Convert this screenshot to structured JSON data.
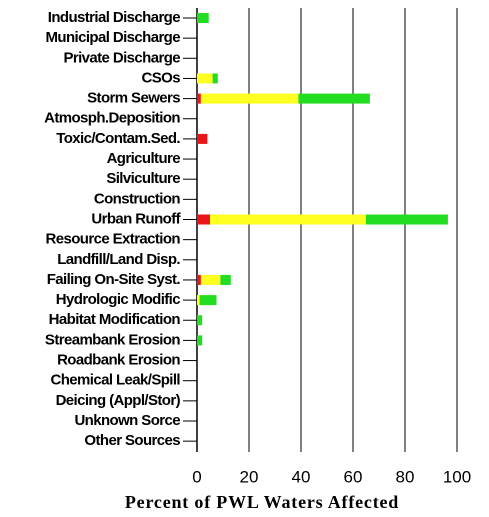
{
  "chart_data": {
    "type": "stacked-barh",
    "xlabel": "Percent  of PWL Waters Affected",
    "categories": [
      "Industrial Discharge",
      "Municipal Discharge",
      "Private Discharge",
      "CSOs",
      "Storm Sewers",
      "Atmosph.Deposition",
      "Toxic/Contam.Sed.",
      "Agriculture",
      "Silviculture",
      "Construction",
      "Urban Runoff",
      "Resource Extraction",
      "Landfill/Land Disp.",
      "Failing On-Site Syst.",
      "Hydrologic Modific",
      "Habitat Modification",
      "Streambank Erosion",
      "Roadbank Erosion",
      "Chemical Leak/Spill",
      "Deicing (Appl/Stor)",
      "Unknown Sorce",
      "Other Sources"
    ],
    "series": [
      {
        "color": "#e8161b",
        "values": [
          0,
          0,
          0,
          0,
          1.5,
          0,
          4,
          0,
          0,
          0,
          5,
          0,
          0,
          1.5,
          0,
          0,
          0,
          0,
          0,
          0,
          0,
          0
        ]
      },
      {
        "color": "#ffff22",
        "values": [
          0,
          0,
          0,
          6,
          37.5,
          0,
          0,
          0,
          0,
          0,
          60,
          0,
          0,
          7.5,
          1,
          0,
          0,
          0,
          0,
          0,
          0,
          0
        ]
      },
      {
        "color": "#22dd22",
        "values": [
          4.5,
          0,
          0,
          2,
          27.5,
          0,
          0,
          0,
          0,
          0,
          31.5,
          0,
          0,
          4,
          6.5,
          2,
          2,
          0,
          0,
          0,
          0,
          0
        ]
      }
    ],
    "xlim": [
      0,
      100
    ],
    "xticks": [
      0,
      20,
      40,
      60,
      80,
      100
    ],
    "grid": true
  }
}
